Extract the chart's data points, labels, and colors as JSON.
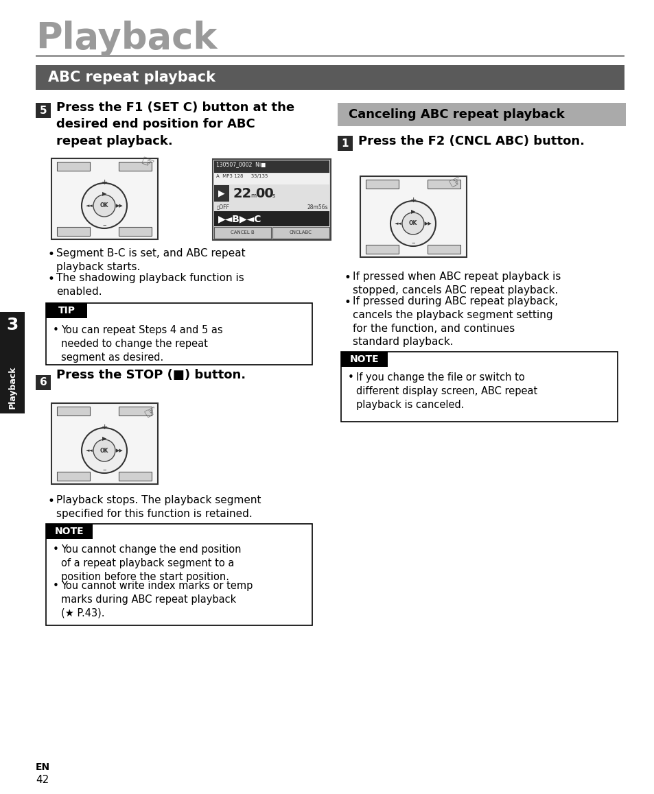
{
  "page_bg": "#ffffff",
  "title_text": "Playback",
  "title_color": "#9a9a9a",
  "section_bar_color": "#5a5a5a",
  "section_bar_text": "ABC repeat playback",
  "section_bar_text_color": "#ffffff",
  "sidebar_color": "#1a1a1a",
  "sidebar_num": "3",
  "sidebar_label": "Playback",
  "step5_num": "5",
  "step5_heading": "Press the F1 (SET C) button at the\ndesired end position for ABC\nrepeat playback.",
  "step5_bullets": [
    "Segment B-C is set, and ABC repeat\nplayback starts.",
    "The shadowing playback function is\nenabled."
  ],
  "tip_header": "TIP",
  "tip_text": "You can repeat Steps 4 and 5 as\nneeded to change the repeat\nsegment as desired.",
  "step6_num": "6",
  "step6_heading": "Press the STOP (■) button.",
  "step6_bullets": [
    "Playback stops. The playback segment\nspecified for this function is retained."
  ],
  "note1_header": "NOTE",
  "note1_bullets": [
    "You cannot change the end position\nof a repeat playback segment to a\nposition before the start position.",
    "You cannot write index marks or temp\nmarks during ABC repeat playback\n(★ P.43)."
  ],
  "cancel_section_text": "Canceling ABC repeat playback",
  "cancel_section_color": "#aaaaaa",
  "step1_num": "1",
  "step1_heading": "Press the F2 (CNCL ABC) button.",
  "step1_bullets": [
    "If pressed when ABC repeat playback is\nstopped, cancels ABC repeat playback.",
    "If pressed during ABC repeat playback,\ncancels the playback segment setting\nfor the function, and continues\nstandard playback."
  ],
  "note2_header": "NOTE",
  "note2_bullets": [
    "If you change the file or switch to\ndifferent display screen, ABC repeat\nplayback is canceled."
  ],
  "divider_color": "#999999",
  "step_num_bg": "#2a2a2a",
  "step_num_color": "#ffffff",
  "black": "#000000",
  "white": "#ffffff",
  "page_num": "42",
  "page_en": "EN"
}
